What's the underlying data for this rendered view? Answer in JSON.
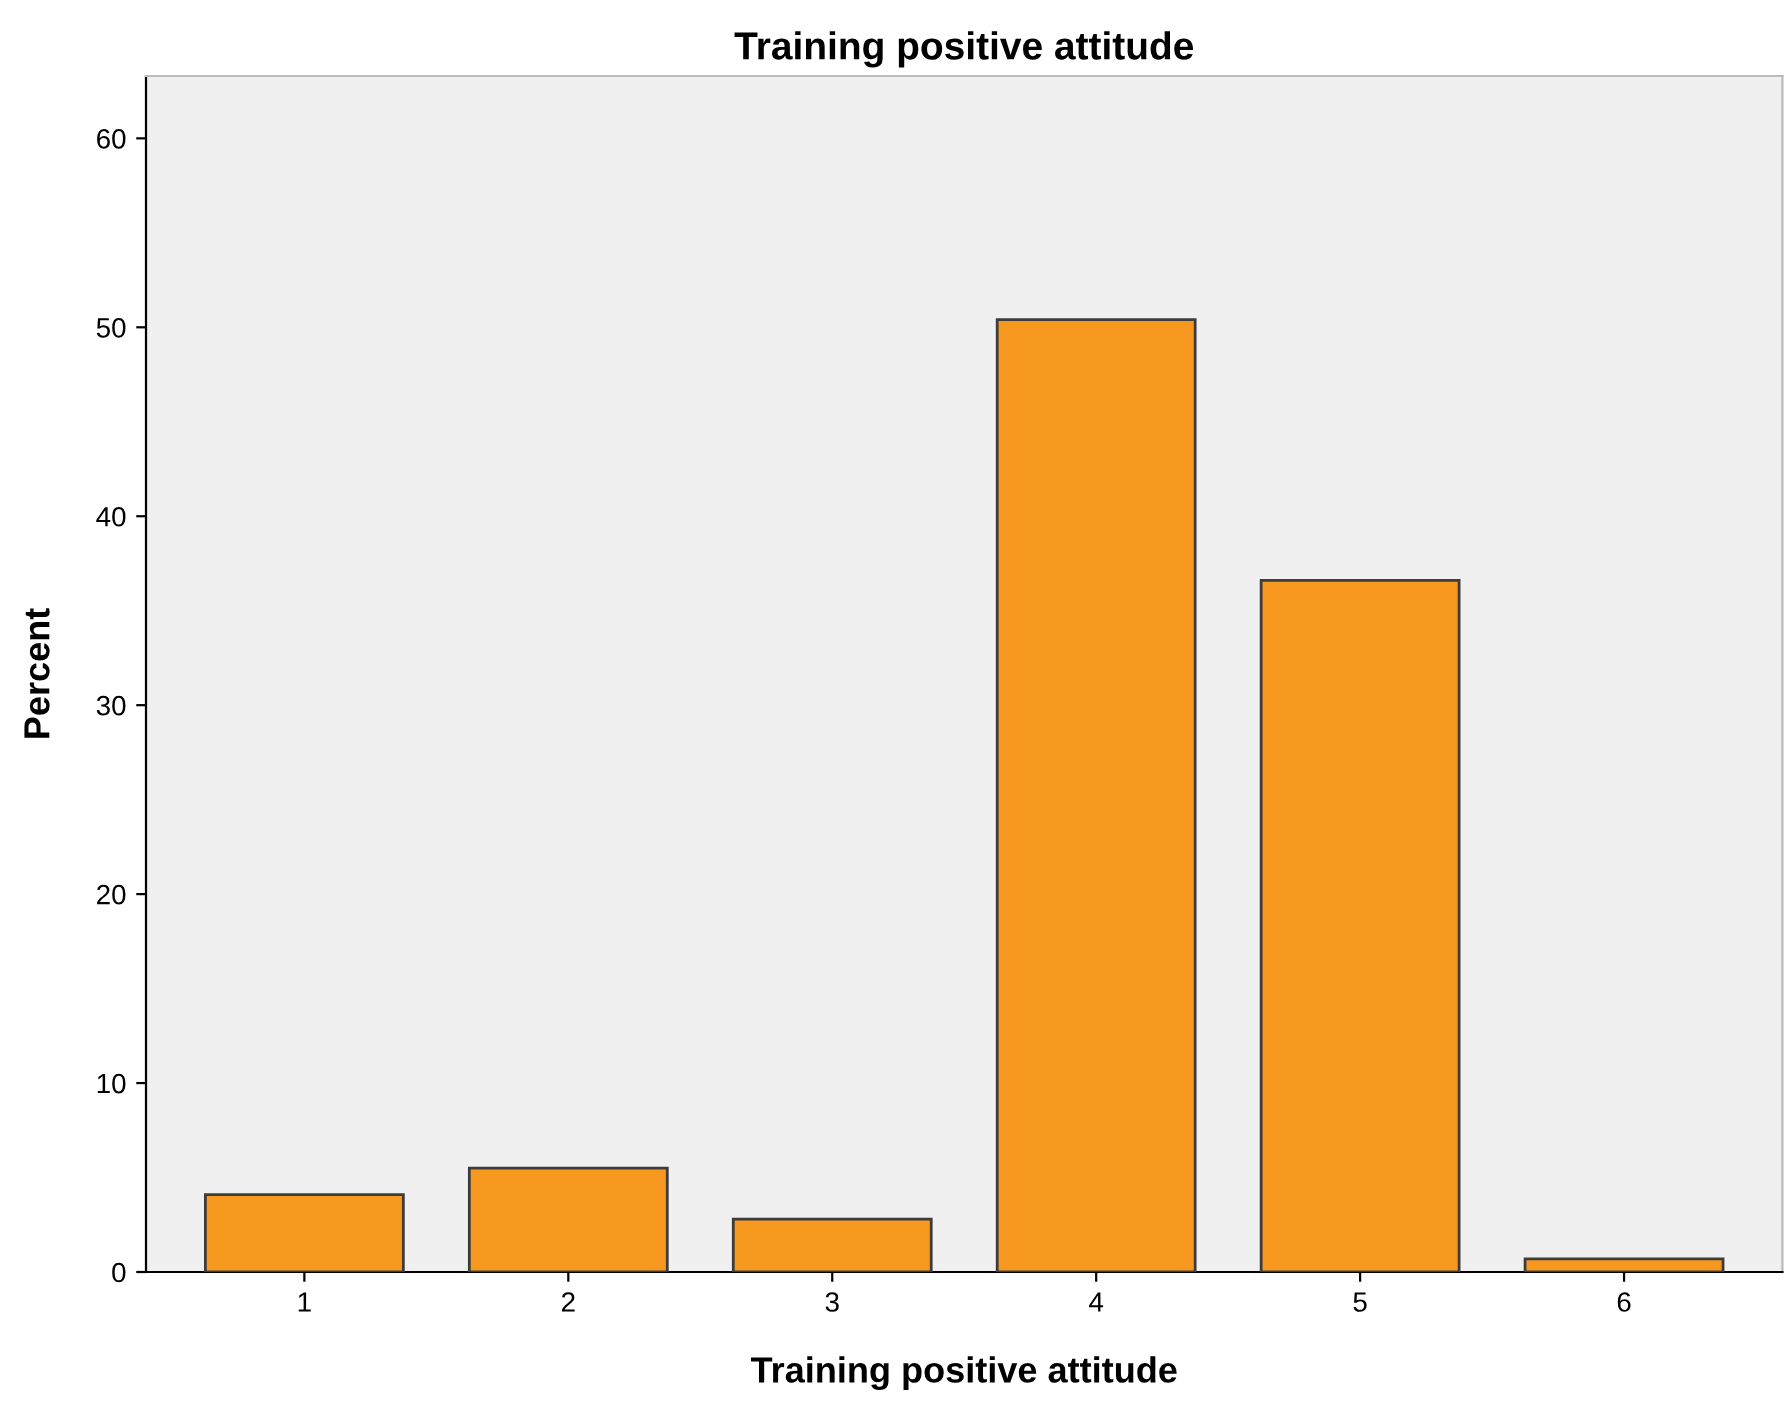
{
  "chart_data": {
    "type": "bar",
    "title": "Training positive attitude",
    "xlabel": "Training positive attitude",
    "ylabel": "Percent",
    "categories": [
      "1",
      "2",
      "3",
      "4",
      "5",
      "6"
    ],
    "values": [
      4.1,
      5.5,
      2.8,
      50.4,
      36.6,
      0.7
    ],
    "color": "#f7991f",
    "ylim": [
      0,
      63.3
    ],
    "yticks": [
      0,
      10,
      20,
      30,
      40,
      50,
      60
    ],
    "grid": false,
    "legend": false
  }
}
